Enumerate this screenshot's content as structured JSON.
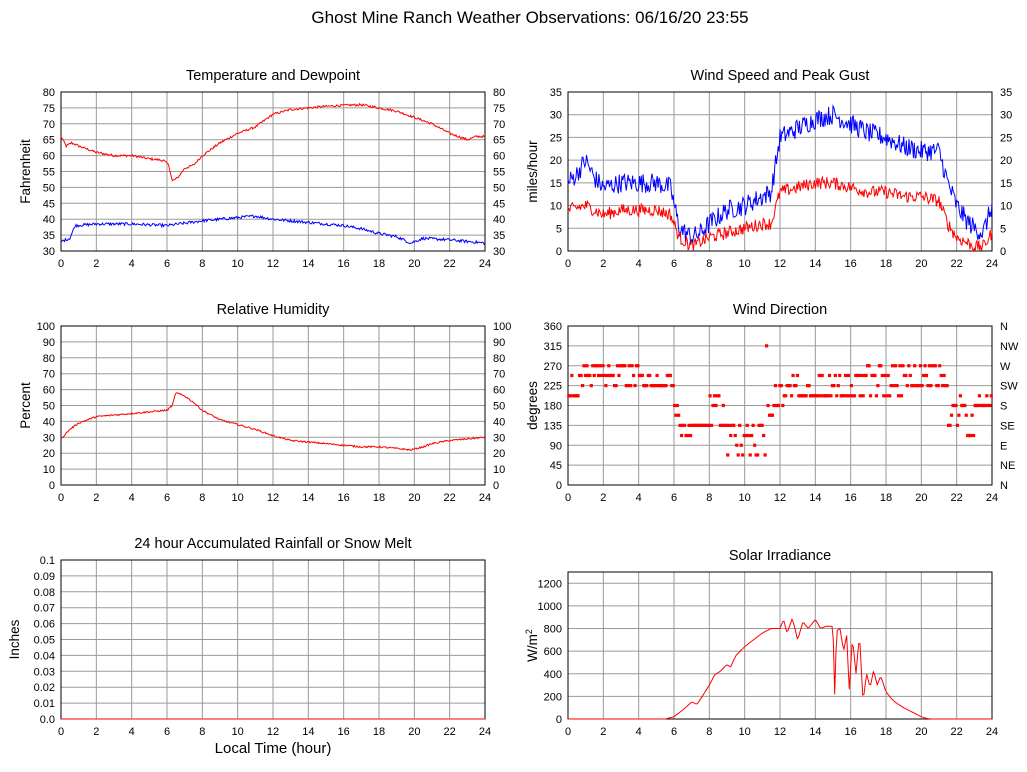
{
  "page": {
    "title": "Ghost Mine Ranch Weather Observations: 06/16/20 23:55",
    "x_axis_label": "Local Time (hour)"
  },
  "colors": {
    "red": "#ff0000",
    "blue": "#0000ff",
    "grid": "#9a9a9a",
    "frame": "#000000"
  },
  "chart_data": [
    {
      "id": "temp",
      "type": "line",
      "title": "Temperature and Dewpoint",
      "ylabel": "Fahrenheit",
      "xlim": [
        0,
        24
      ],
      "ylim": [
        30,
        80
      ],
      "x_ticks": [
        0,
        2,
        4,
        6,
        8,
        10,
        12,
        14,
        16,
        18,
        20,
        22,
        24
      ],
      "y_ticks": [
        "30",
        "35",
        "40",
        "45",
        "50",
        "55",
        "60",
        "65",
        "70",
        "75",
        "80"
      ],
      "right_ticks": [
        "30",
        "35",
        "40",
        "45",
        "50",
        "55",
        "60",
        "65",
        "70",
        "75",
        "80"
      ],
      "grid": true,
      "series": [
        {
          "color": "#ff0000",
          "noise": 0.35,
          "x": [
            0,
            0.3,
            0.6,
            1,
            2,
            3,
            4,
            5,
            5.8,
            6.1,
            6.3,
            6.6,
            7,
            7.5,
            8,
            9,
            10,
            11,
            12,
            13,
            14,
            15,
            16,
            17,
            18,
            19,
            20,
            21,
            22,
            23,
            23.5,
            24
          ],
          "y": [
            66,
            63,
            64,
            63,
            61,
            60,
            60,
            59,
            58.5,
            57,
            52,
            53,
            56,
            57,
            60,
            64,
            67,
            69,
            73,
            74.5,
            75,
            75.5,
            75.8,
            76,
            75,
            74,
            72,
            70,
            67,
            65,
            66,
            66
          ]
        },
        {
          "color": "#0000ff",
          "noise": 0.45,
          "x": [
            0,
            0.5,
            0.8,
            2,
            4,
            6,
            8,
            10,
            11,
            12,
            14,
            16,
            17,
            18,
            19,
            19.8,
            20.5,
            22,
            24
          ],
          "y": [
            33,
            34,
            38,
            38.5,
            38.5,
            38,
            39.5,
            40.5,
            41,
            40,
            39,
            38,
            37,
            35.5,
            34.5,
            32.5,
            34,
            33.5,
            32.5
          ]
        }
      ]
    },
    {
      "id": "wind",
      "type": "line",
      "title": "Wind Speed and Peak Gust",
      "ylabel": "miles/hour",
      "xlim": [
        0,
        24
      ],
      "ylim": [
        0,
        35
      ],
      "x_ticks": [
        0,
        2,
        4,
        6,
        8,
        10,
        12,
        14,
        16,
        18,
        20,
        22,
        24
      ],
      "y_ticks": [
        "0",
        "5",
        "10",
        "15",
        "20",
        "25",
        "30",
        "35"
      ],
      "right_ticks": [
        "0",
        "5",
        "10",
        "15",
        "20",
        "25",
        "30",
        "35"
      ],
      "grid": true,
      "series": [
        {
          "color": "#0000ff",
          "noise": 2.2,
          "x": [
            0,
            0.5,
            1,
            1.5,
            2,
            3,
            4,
            5,
            5.8,
            6.3,
            7,
            7.5,
            8,
            9,
            10,
            11,
            11.5,
            12,
            13,
            14,
            15,
            16,
            17,
            18,
            19,
            20,
            21,
            21.5,
            22,
            22.5,
            23,
            23.5,
            24
          ],
          "y": [
            15,
            17,
            20,
            16,
            14,
            15,
            15,
            15,
            14,
            5,
            3,
            4,
            6,
            9,
            10,
            12,
            13,
            25,
            27,
            29,
            30,
            28,
            26,
            25,
            23,
            22,
            22,
            15,
            10,
            7,
            5,
            4,
            10
          ]
        },
        {
          "color": "#ff0000",
          "noise": 1.4,
          "x": [
            0,
            1,
            2,
            3,
            4,
            5,
            5.8,
            6.3,
            7,
            7.5,
            8,
            9,
            10,
            11,
            11.5,
            12,
            13,
            14,
            15,
            16,
            17,
            18,
            19,
            20,
            21,
            21.5,
            22,
            22.5,
            23,
            23.5,
            24
          ],
          "y": [
            9,
            10,
            8,
            9,
            9,
            9,
            8,
            3,
            1,
            2,
            3,
            4,
            5,
            6,
            6,
            13,
            14,
            15,
            15,
            14,
            13,
            13,
            12,
            12,
            11,
            6,
            3,
            2,
            1,
            1,
            4
          ]
        }
      ]
    },
    {
      "id": "rh",
      "type": "line",
      "title": "Relative Humidity",
      "ylabel": "Percent",
      "xlim": [
        0,
        24
      ],
      "ylim": [
        0,
        100
      ],
      "x_ticks": [
        0,
        2,
        4,
        6,
        8,
        10,
        12,
        14,
        16,
        18,
        20,
        22,
        24
      ],
      "y_ticks": [
        "0",
        "10",
        "20",
        "30",
        "40",
        "50",
        "60",
        "70",
        "80",
        "90",
        "100"
      ],
      "right_ticks": [
        "0",
        "10",
        "20",
        "30",
        "40",
        "50",
        "60",
        "70",
        "80",
        "90",
        "100"
      ],
      "grid": true,
      "series": [
        {
          "color": "#ff0000",
          "noise": 0.5,
          "x": [
            0,
            0.5,
            1,
            2,
            3,
            4,
            5,
            6,
            6.3,
            6.5,
            7,
            7.5,
            8,
            9,
            10,
            11,
            12,
            13,
            14,
            15,
            16,
            17,
            18,
            19,
            19.8,
            20.5,
            21,
            22,
            23,
            24
          ],
          "y": [
            29,
            35,
            39,
            43,
            44,
            45,
            46,
            47,
            50,
            58,
            56,
            52,
            47,
            41,
            38,
            35,
            31,
            28,
            27,
            26,
            25,
            24,
            24,
            23,
            22,
            24,
            26,
            28,
            29,
            30
          ]
        }
      ]
    },
    {
      "id": "dir",
      "type": "scatter",
      "title": "Wind Direction",
      "ylabel": "degrees",
      "xlim": [
        0,
        24
      ],
      "ylim": [
        0,
        360
      ],
      "x_ticks": [
        0,
        2,
        4,
        6,
        8,
        10,
        12,
        14,
        16,
        18,
        20,
        22,
        24
      ],
      "y_ticks": [
        "0",
        "45",
        "90",
        "135",
        "180",
        "225",
        "270",
        "315",
        "360"
      ],
      "right_ticks": [
        "N",
        "NE",
        "E",
        "SE",
        "S",
        "SW",
        "W",
        "NW",
        "N"
      ],
      "grid": true,
      "series": [
        {
          "color": "#ff0000",
          "segments": [
            {
              "x0": 0.0,
              "x1": 0.7,
              "levels": [
                248,
                202,
                202
              ]
            },
            {
              "x0": 0.7,
              "x1": 4.0,
              "levels": [
                248,
                248,
                225,
                270
              ]
            },
            {
              "x0": 4.0,
              "x1": 6.0,
              "levels": [
                225,
                248,
                225
              ]
            },
            {
              "x0": 6.0,
              "x1": 6.3,
              "levels": [
                180,
                158
              ]
            },
            {
              "x0": 6.3,
              "x1": 8.0,
              "levels": [
                135,
                135,
                112
              ]
            },
            {
              "x0": 8.0,
              "x1": 9.0,
              "levels": [
                180,
                158,
                202,
                135
              ]
            },
            {
              "x0": 9.0,
              "x1": 11.2,
              "levels": [
                90,
                112,
                135,
                68
              ]
            },
            {
              "x0": 11.2,
              "x1": 11.7,
              "levels": [
                180,
                158,
                315
              ]
            },
            {
              "x0": 11.7,
              "x1": 12.2,
              "levels": [
                180,
                225
              ]
            },
            {
              "x0": 12.2,
              "x1": 16.0,
              "levels": [
                202,
                225,
                248,
                202
              ]
            },
            {
              "x0": 16.0,
              "x1": 19.0,
              "levels": [
                225,
                248,
                202,
                270
              ]
            },
            {
              "x0": 19.0,
              "x1": 21.5,
              "levels": [
                225,
                225,
                248,
                270
              ]
            },
            {
              "x0": 21.5,
              "x1": 22.5,
              "levels": [
                158,
                180,
                135,
                202
              ]
            },
            {
              "x0": 22.5,
              "x1": 23.0,
              "levels": [
                112,
                158
              ]
            },
            {
              "x0": 23.0,
              "x1": 24.0,
              "levels": [
                180,
                202,
                180
              ]
            }
          ]
        }
      ]
    },
    {
      "id": "rain",
      "type": "line",
      "title": "24 hour Accumulated Rainfall or Snow Melt",
      "ylabel": "Inches",
      "xlim": [
        0,
        24
      ],
      "ylim": [
        0,
        0.1
      ],
      "x_ticks": [
        0,
        2,
        4,
        6,
        8,
        10,
        12,
        14,
        16,
        18,
        20,
        22,
        24
      ],
      "y_ticks": [
        "0.0",
        "0.01",
        "0.02",
        "0.03",
        "0.04",
        "0.05",
        "0.06",
        "0.07",
        "0.08",
        "0.09",
        "0.1"
      ],
      "right_ticks": [],
      "grid": true,
      "series": [
        {
          "color": "#ff0000",
          "noise": 0,
          "x": [
            0,
            24
          ],
          "y": [
            0,
            0
          ]
        }
      ]
    },
    {
      "id": "solar",
      "type": "line",
      "title": "Solar Irradiance",
      "ylabel": "W/m",
      "ylabel_sup": "2",
      "xlim": [
        0,
        24
      ],
      "ylim": [
        0,
        1300
      ],
      "x_ticks": [
        0,
        2,
        4,
        6,
        8,
        10,
        12,
        14,
        16,
        18,
        20,
        22,
        24
      ],
      "y_ticks": [
        "0",
        "200",
        "400",
        "600",
        "800",
        "1000",
        "1200"
      ],
      "y_tick_values": [
        0,
        200,
        400,
        600,
        800,
        1000,
        1200
      ],
      "right_ticks": [],
      "grid": true,
      "series": [
        {
          "color": "#ff0000",
          "noise": 0,
          "x": [
            0,
            5.5,
            6,
            6.5,
            7,
            7.3,
            7.6,
            8,
            8.3,
            8.6,
            9,
            9.2,
            9.5,
            10,
            10.5,
            11,
            11.5,
            12,
            12.2,
            12.4,
            12.7,
            13,
            13.3,
            13.6,
            14,
            14.3,
            14.6,
            15.0,
            15.1,
            15.2,
            15.4,
            15.6,
            15.8,
            15.9,
            16.1,
            16.3,
            16.5,
            16.7,
            16.9,
            17.1,
            17.3,
            17.5,
            17.7,
            18,
            18.3,
            18.6,
            19,
            19.5,
            20,
            20.3,
            20.6,
            21,
            24
          ],
          "y": [
            0,
            0,
            20,
            80,
            150,
            130,
            200,
            300,
            390,
            420,
            480,
            460,
            560,
            640,
            700,
            760,
            800,
            800,
            880,
            760,
            890,
            700,
            860,
            800,
            880,
            800,
            820,
            820,
            180,
            780,
            800,
            600,
            760,
            200,
            720,
            400,
            750,
            150,
            400,
            280,
            430,
            300,
            380,
            240,
            180,
            140,
            100,
            60,
            20,
            5,
            0,
            0,
            0
          ]
        }
      ]
    }
  ]
}
